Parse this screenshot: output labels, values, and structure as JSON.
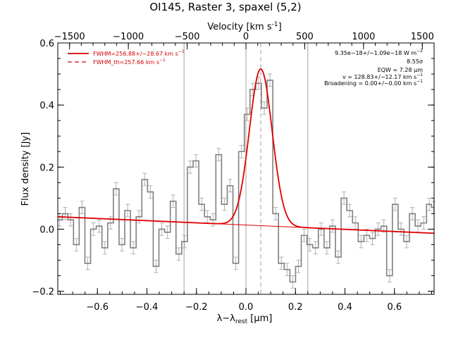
{
  "chart_data": {
    "type": "line",
    "title": "OI145, Raster 3, spaxel (5,2)",
    "xlabel": "λ−λ",
    "xlabel_sub": "rest",
    "xlabel_unit_open": " [",
    "xlabel_mu": "μ",
    "xlabel_unit_close": "m]",
    "ylabel": "Flux density [Jy]",
    "top_xlabel": "Velocity [km s",
    "top_xlabel_sup": "-1",
    "top_xlabel_close": "]",
    "xlim": [
      -0.76,
      0.76
    ],
    "ylim": [
      -0.21,
      0.6
    ],
    "top_xlim": [
      -1600,
      1600
    ],
    "x_ticks": [
      -0.6,
      -0.4,
      -0.2,
      0.0,
      0.2,
      0.4,
      0.6
    ],
    "x_tick_labels": [
      "−0.6",
      "−0.4",
      "−0.2",
      "0.0",
      "0.2",
      "0.4",
      "0.6"
    ],
    "y_ticks": [
      -0.2,
      0.0,
      0.2,
      0.4,
      0.6
    ],
    "y_tick_labels": [
      "−0.2",
      "0.0",
      "0.2",
      "0.4",
      "0.6"
    ],
    "top_ticks": [
      -1500,
      -1000,
      -500,
      0,
      500,
      1000,
      1500
    ],
    "top_tick_labels": [
      "−1500",
      "−1000",
      "−500",
      "0",
      "500",
      "1000",
      "1500"
    ],
    "vertical_lines": [
      -0.25,
      0.0,
      0.25
    ],
    "dashed_vertical_line": 0.06,
    "grid": false,
    "legend": {
      "placement": "top-left",
      "entries": [
        {
          "style": "solid",
          "text": "FWHM=256.88+/−28.67 km s",
          "sup": "−1"
        },
        {
          "style": "dashed",
          "text": "FWHM_th=257.66 km s",
          "sup": "−1"
        }
      ]
    },
    "annotations": [
      {
        "text": "9.35e−18+/−1.09e−18 W m",
        "sup": "−2"
      },
      {
        "text": "8.55σ",
        "sup": ""
      },
      {
        "text": "EQW = 7.28 μm",
        "sup": ""
      },
      {
        "text": "v = 128.83+/−12.17 km s",
        "sup": "−1"
      },
      {
        "text": "Broadening = 0.00+/−0.00 km s",
        "sup": "−1"
      }
    ],
    "colors": {
      "spectrum": "#808080",
      "error_bars": "#b0b0b0",
      "fit": "#e00000",
      "axes": "#000000",
      "reference_lines": "#a0a0a0"
    },
    "spectrum": {
      "name": "",
      "x": [
        -0.753,
        -0.73,
        -0.708,
        -0.685,
        -0.662,
        -0.639,
        -0.616,
        -0.593,
        -0.57,
        -0.547,
        -0.524,
        -0.501,
        -0.478,
        -0.455,
        -0.432,
        -0.409,
        -0.386,
        -0.363,
        -0.34,
        -0.317,
        -0.294,
        -0.271,
        -0.248,
        -0.225,
        -0.202,
        -0.179,
        -0.156,
        -0.133,
        -0.11,
        -0.087,
        -0.064,
        -0.041,
        -0.018,
        0.005,
        0.028,
        0.051,
        0.074,
        0.097,
        0.12,
        0.143,
        0.166,
        0.189,
        0.212,
        0.235,
        0.258,
        0.281,
        0.304,
        0.327,
        0.35,
        0.373,
        0.396,
        0.419,
        0.442,
        0.465,
        0.488,
        0.511,
        0.534,
        0.557,
        0.58,
        0.603,
        0.626,
        0.649,
        0.672,
        0.695,
        0.718,
        0.741,
        0.758
      ],
      "y": [
        0.03,
        0.05,
        0.03,
        -0.05,
        0.07,
        -0.11,
        0.0,
        0.01,
        -0.06,
        0.02,
        0.13,
        -0.05,
        0.06,
        -0.06,
        0.04,
        0.16,
        0.12,
        -0.12,
        0.0,
        -0.01,
        0.09,
        -0.08,
        -0.04,
        0.2,
        0.22,
        0.08,
        0.04,
        0.03,
        0.24,
        0.08,
        0.14,
        -0.11,
        0.25,
        0.37,
        0.45,
        0.47,
        0.39,
        0.48,
        0.05,
        -0.11,
        -0.13,
        -0.17,
        -0.12,
        -0.02,
        -0.05,
        -0.06,
        0.0,
        -0.06,
        0.01,
        -0.09,
        0.1,
        0.06,
        0.02,
        -0.04,
        -0.02,
        -0.03,
        0.0,
        0.01,
        -0.15,
        0.08,
        0.0,
        -0.04,
        0.05,
        0.01,
        0.02,
        0.08,
        0.07
      ],
      "yerr": 0.02
    },
    "fit": {
      "name": "",
      "amplitude": 0.505,
      "center": 0.06,
      "sigma": 0.046,
      "baseline_at_xmin": 0.04,
      "baseline_slope": -0.035
    }
  }
}
